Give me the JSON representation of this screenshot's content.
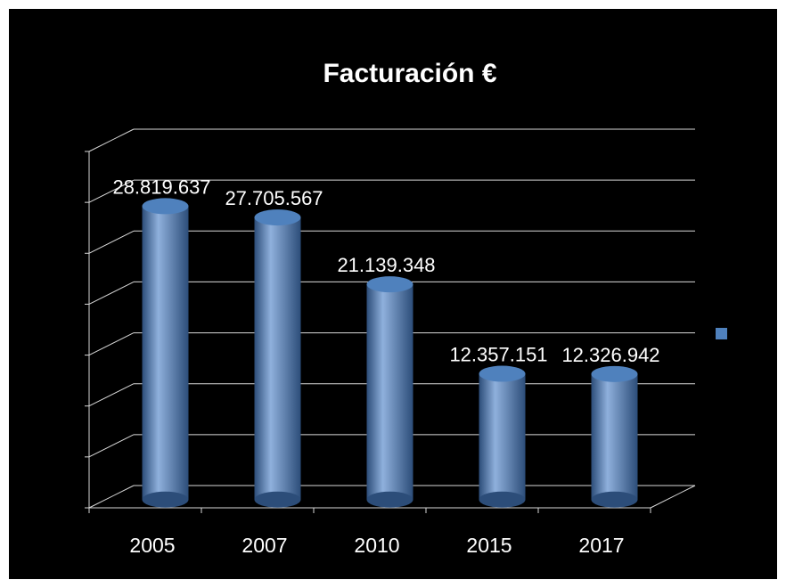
{
  "chart_data": {
    "type": "bar",
    "title": "Facturación €",
    "xlabel": "",
    "ylabel": "",
    "categories": [
      "2005",
      "2007",
      "2010",
      "2015",
      "2017"
    ],
    "series": [
      {
        "values": [
          28819637,
          27705567,
          21139348,
          12357151,
          12326942
        ],
        "labels": [
          "28.819.637",
          "27.705.567",
          "21.139.348",
          "12.357.151",
          "12.326.942"
        ]
      }
    ],
    "ylim": [
      0,
      35000000
    ],
    "grid": true,
    "legend": "right",
    "style": "3d-cylinder",
    "colors": {
      "background": "#000000",
      "bar": "#4f81bd",
      "bar_dark": "#2c4d79",
      "bar_light": "#8fb0dc",
      "grid": "#d9d9d9",
      "text": "#ffffff"
    }
  }
}
